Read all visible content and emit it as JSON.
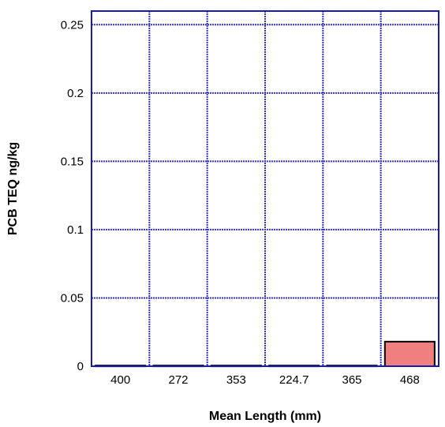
{
  "chart_data": {
    "type": "bar",
    "title": "",
    "xlabel": "Mean Length (mm)",
    "ylabel": "PCB TEQ ng/kg",
    "categories": [
      "400",
      "272",
      "353",
      "224.7",
      "365",
      "468"
    ],
    "values": [
      0.0005,
      0.0005,
      0.0005,
      0.0005,
      0.0005,
      0.018
    ],
    "ylim": [
      0,
      0.26
    ],
    "yticks": [
      0,
      0.05,
      0.1,
      0.15,
      0.2,
      0.25
    ],
    "ytick_labels": [
      "0",
      "0.05",
      "0.1",
      "0.15",
      "0.2",
      "0.25"
    ],
    "grid": true,
    "legend": "none",
    "colors": {
      "bar_fill": "#f08080",
      "bar_edge": "#000000",
      "grid": "#3333cc",
      "frame": "#1a1ab3"
    }
  }
}
